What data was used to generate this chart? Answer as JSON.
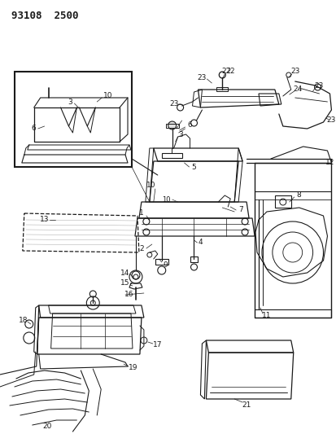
{
  "title": "93108  2500",
  "bg_color": "#ffffff",
  "fig_width": 4.14,
  "fig_height": 5.33,
  "dpi": 100,
  "lc": "#1a1a1a",
  "lw": 0.7
}
